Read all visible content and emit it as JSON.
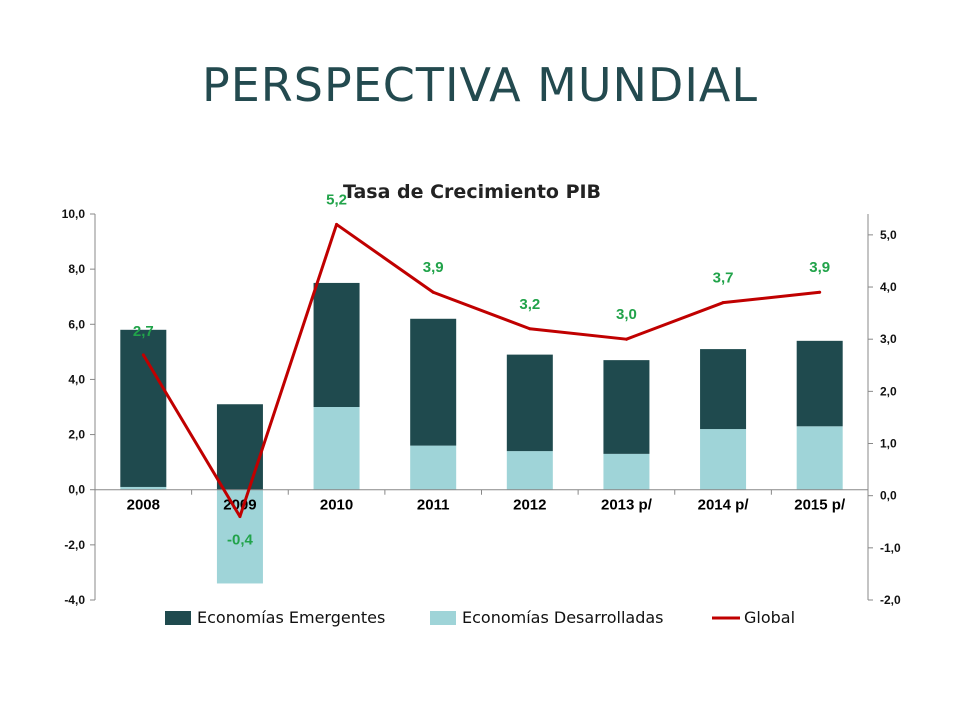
{
  "slide": {
    "title": "PERSPECTIVA MUNDIAL"
  },
  "chart_data": {
    "type": "bar",
    "title": "Tasa de Crecimiento PIB",
    "categories": [
      "2008",
      "2009",
      "2010",
      "2011",
      "2012",
      "2013 p/",
      "2014 p/",
      "2015 p/"
    ],
    "series": [
      {
        "name": "Economías Emergentes",
        "kind": "bar",
        "axis": "left",
        "stacked": true,
        "color": "#1f4a4e",
        "values": [
          5.7,
          3.1,
          4.5,
          4.6,
          3.5,
          3.4,
          2.9,
          3.1
        ]
      },
      {
        "name": "Economías Desarrolladas",
        "kind": "bar",
        "axis": "left",
        "stacked": true,
        "color": "#9fd4d8",
        "values": [
          0.1,
          -3.4,
          3.0,
          1.6,
          1.4,
          1.3,
          2.2,
          2.3
        ]
      },
      {
        "name": "Global",
        "kind": "line",
        "axis": "right",
        "color": "#c00000",
        "values": [
          2.7,
          -0.4,
          5.2,
          3.9,
          3.2,
          3.0,
          3.7,
          3.9
        ],
        "labels": [
          "2,7",
          "-0,4",
          "5,2",
          "3,9",
          "3,2",
          "3,0",
          "3,7",
          "3,9"
        ]
      }
    ],
    "y_left": {
      "ylim": [
        -4,
        10
      ],
      "ticks": [
        10,
        8,
        6,
        4,
        2,
        0,
        -2,
        -4
      ],
      "tick_labels": [
        "10,0",
        "8,0",
        "6,0",
        "4,0",
        "2,0",
        "0,0",
        "-2,0",
        "-4,0"
      ]
    },
    "y_right": {
      "ylim": [
        -2,
        5.4
      ],
      "ticks": [
        5,
        4,
        3,
        2,
        1,
        0,
        -1,
        -2
      ],
      "tick_labels": [
        "5,0",
        "4,0",
        "3,0",
        "2,0",
        "1,0",
        "0,0",
        "-1,0",
        "-2,0"
      ]
    },
    "grid": false,
    "legend_position": "bottom",
    "label_color": "#21a34a"
  }
}
